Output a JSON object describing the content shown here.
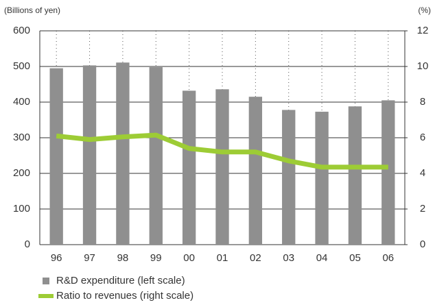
{
  "chart_data": {
    "type": "bar",
    "y_label": "(Billions of yen)",
    "y2_label": "(%)",
    "categories": [
      "96",
      "97",
      "98",
      "99",
      "00",
      "01",
      "02",
      "03",
      "04",
      "05",
      "06"
    ],
    "series": [
      {
        "name": "R&D expenditure (left scale)",
        "type": "bar",
        "color": "#8f8f8f",
        "values": [
          495,
          503,
          511,
          498,
          432,
          436,
          415,
          378,
          373,
          388,
          405
        ]
      },
      {
        "name": "Ratio to revenues (right scale)",
        "type": "line",
        "axis": "y2",
        "color": "#9dcc35",
        "values": [
          6.1,
          5.9,
          6.05,
          6.15,
          5.4,
          5.2,
          5.2,
          4.7,
          4.35,
          4.35,
          4.35
        ]
      }
    ],
    "ylim": [
      0,
      600
    ],
    "yticks": [
      0,
      100,
      200,
      300,
      400,
      500,
      600
    ],
    "y2lim": [
      0,
      12
    ],
    "y2ticks": [
      0,
      2,
      4,
      6,
      8,
      10,
      12
    ],
    "grid": true
  }
}
